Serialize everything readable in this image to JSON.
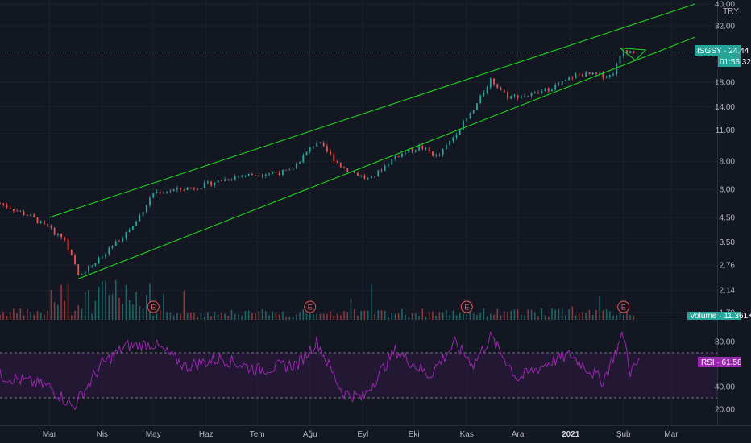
{
  "currency_label": "TRY",
  "colors": {
    "background": "#131722",
    "grid": "#1e222d",
    "up": "#26a69a",
    "down": "#ef5350",
    "channel": "#1fd11f",
    "rsi": "#9c27b0",
    "rsi_band": "#2a1a3a",
    "axis_text": "#b2b5be",
    "pane_divider": "#2a2e39"
  },
  "price_tag": {
    "symbol_label": "ISGSY · 24.44",
    "countdown": "01:56:32"
  },
  "volume_tag": {
    "label": "Volume · 11.361K"
  },
  "rsi_tag": {
    "label": "RSI · 61.58"
  },
  "earnings_marker": "E",
  "chart_data": [
    {
      "type": "candlestick",
      "panel": "price",
      "symbol": "ISGSY",
      "currency": "TRY",
      "scale": "log",
      "y_ticks": [
        "40.00",
        "32.00",
        "24.44",
        "18.00",
        "14.00",
        "11.00",
        "8.00",
        "6.00",
        "4.50",
        "3.50",
        "2.76",
        "2.14",
        "1.70"
      ],
      "x_ticks": [
        "Mar",
        "Nis",
        "May",
        "Haz",
        "Tem",
        "Ağu",
        "Eyl",
        "Eki",
        "Kas",
        "Ara",
        "2021",
        "Şub",
        "Mar"
      ],
      "last_price": 24.44,
      "approx_close_path": [
        {
          "date": "2020-02-01",
          "close": 5.2
        },
        {
          "date": "2020-02-20",
          "close": 4.5
        },
        {
          "date": "2020-03-10",
          "close": 3.6
        },
        {
          "date": "2020-03-18",
          "close": 2.5
        },
        {
          "date": "2020-04-01",
          "close": 3.0
        },
        {
          "date": "2020-04-20",
          "close": 4.2
        },
        {
          "date": "2020-05-01",
          "close": 5.8
        },
        {
          "date": "2020-05-25",
          "close": 6.1
        },
        {
          "date": "2020-06-20",
          "close": 6.9
        },
        {
          "date": "2020-07-20",
          "close": 7.2
        },
        {
          "date": "2020-08-05",
          "close": 9.8
        },
        {
          "date": "2020-08-20",
          "close": 7.5
        },
        {
          "date": "2020-09-05",
          "close": 6.6
        },
        {
          "date": "2020-09-20",
          "close": 8.4
        },
        {
          "date": "2020-10-05",
          "close": 9.3
        },
        {
          "date": "2020-10-15",
          "close": 8.3
        },
        {
          "date": "2020-10-25",
          "close": 10.5
        },
        {
          "date": "2020-11-05",
          "close": 13.5
        },
        {
          "date": "2020-11-15",
          "close": 18.5
        },
        {
          "date": "2020-11-25",
          "close": 15.5
        },
        {
          "date": "2020-12-10",
          "close": 15.8
        },
        {
          "date": "2020-12-25",
          "close": 17.5
        },
        {
          "date": "2021-01-05",
          "close": 19.5
        },
        {
          "date": "2021-01-25",
          "close": 19.2
        },
        {
          "date": "2021-02-01",
          "close": 25.0
        },
        {
          "date": "2021-02-08",
          "close": 24.44
        }
      ],
      "channel": {
        "upper_line": [
          {
            "date": "2020-03-01",
            "price": 4.5
          },
          {
            "date": "2021-03-15",
            "price": 40.0
          }
        ],
        "lower_line": [
          {
            "date": "2020-03-18",
            "price": 2.4
          },
          {
            "date": "2021-03-15",
            "price": 28.5
          }
        ],
        "pennant": [
          {
            "date": "2021-01-30",
            "price": 25.5
          },
          {
            "date": "2021-02-14",
            "price": 25.0
          },
          {
            "date": "2021-02-08",
            "price": 22.5
          }
        ]
      },
      "earnings_dates": [
        "2020-05-01",
        "2020-08-01",
        "2020-11-01",
        "2021-02-01"
      ]
    },
    {
      "type": "bar",
      "panel": "volume",
      "series_name": "Volume",
      "last_value": "11.361K"
    },
    {
      "type": "line",
      "panel": "rsi",
      "series_name": "RSI",
      "last_value": 61.58,
      "y_ticks": [
        "80.00",
        "40.00",
        "20.00"
      ],
      "bands": {
        "upper": 70,
        "lower": 30
      },
      "approx_path": [
        {
          "date": "2020-02-01",
          "value": 50
        },
        {
          "date": "2020-03-01",
          "value": 40
        },
        {
          "date": "2020-03-15",
          "value": 22
        },
        {
          "date": "2020-04-01",
          "value": 60
        },
        {
          "date": "2020-04-15",
          "value": 76
        },
        {
          "date": "2020-05-01",
          "value": 78
        },
        {
          "date": "2020-05-20",
          "value": 58
        },
        {
          "date": "2020-06-10",
          "value": 65
        },
        {
          "date": "2020-07-01",
          "value": 55
        },
        {
          "date": "2020-07-25",
          "value": 60
        },
        {
          "date": "2020-08-05",
          "value": 80
        },
        {
          "date": "2020-08-20",
          "value": 35
        },
        {
          "date": "2020-09-01",
          "value": 30
        },
        {
          "date": "2020-09-20",
          "value": 72
        },
        {
          "date": "2020-10-10",
          "value": 50
        },
        {
          "date": "2020-10-25",
          "value": 78
        },
        {
          "date": "2020-11-05",
          "value": 60
        },
        {
          "date": "2020-11-15",
          "value": 84
        },
        {
          "date": "2020-12-01",
          "value": 47
        },
        {
          "date": "2020-12-20",
          "value": 62
        },
        {
          "date": "2021-01-01",
          "value": 68
        },
        {
          "date": "2021-01-20",
          "value": 45
        },
        {
          "date": "2021-02-01",
          "value": 87
        },
        {
          "date": "2021-02-05",
          "value": 53
        },
        {
          "date": "2021-02-10",
          "value": 61.58
        }
      ]
    }
  ]
}
